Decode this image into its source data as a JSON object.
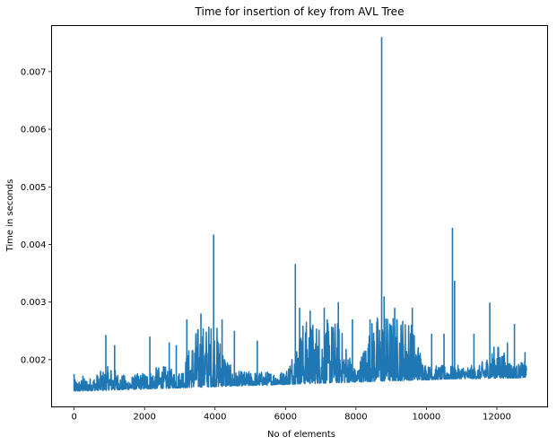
{
  "chart_data": {
    "type": "line",
    "title": "Time for insertion of key from AVL Tree",
    "xlabel": "No of elements",
    "ylabel": "Time in seconds",
    "xlim": [
      -640,
      13440
    ],
    "ylim": [
      0.00118,
      0.0078
    ],
    "xticks": [
      0,
      2000,
      4000,
      6000,
      8000,
      10000,
      12000
    ],
    "xtick_labels": [
      "0",
      "2000",
      "4000",
      "6000",
      "8000",
      "10000",
      "12000"
    ],
    "yticks": [
      0.002,
      0.003,
      0.004,
      0.005,
      0.006,
      0.007
    ],
    "ytick_labels": [
      "0.002",
      "0.003",
      "0.004",
      "0.005",
      "0.006",
      "0.007"
    ],
    "grid": false,
    "line_color": "#1f77b4",
    "series": [
      {
        "x": [
          0,
          500,
          1000,
          1500,
          2000,
          2500,
          3000,
          3500,
          4000,
          4500,
          5000,
          5500,
          6000,
          6500,
          7000,
          7500,
          8000,
          8500,
          9000,
          9500,
          10000,
          10500,
          11000,
          11500,
          12000,
          12500,
          12850
        ],
        "baseline": [
          0.00145,
          0.00146,
          0.00147,
          0.00148,
          0.00149,
          0.0015,
          0.00151,
          0.00152,
          0.00153,
          0.00154,
          0.00155,
          0.00156,
          0.00157,
          0.00158,
          0.00159,
          0.0016,
          0.00161,
          0.00162,
          0.00163,
          0.00164,
          0.00165,
          0.00166,
          0.00167,
          0.00167,
          0.00168,
          0.00168,
          0.00169
        ],
        "envelope": [
          0.00165,
          0.0017,
          0.0019,
          0.0017,
          0.0018,
          0.0019,
          0.0018,
          0.0026,
          0.0027,
          0.0018,
          0.0018,
          0.0018,
          0.0018,
          0.0027,
          0.0027,
          0.0027,
          0.0018,
          0.0028,
          0.0028,
          0.0028,
          0.0019,
          0.0019,
          0.0019,
          0.0019,
          0.0023,
          0.0019,
          0.002
        ]
      }
    ],
    "spikes": [
      {
        "x": 0,
        "y": 0.00175
      },
      {
        "x": 250,
        "y": 0.00172
      },
      {
        "x": 900,
        "y": 0.00243
      },
      {
        "x": 1150,
        "y": 0.00225
      },
      {
        "x": 2150,
        "y": 0.0024
      },
      {
        "x": 2700,
        "y": 0.0023
      },
      {
        "x": 2900,
        "y": 0.00225
      },
      {
        "x": 3200,
        "y": 0.0027
      },
      {
        "x": 3600,
        "y": 0.0028
      },
      {
        "x": 3960,
        "y": 0.00417
      },
      {
        "x": 4200,
        "y": 0.0027
      },
      {
        "x": 4550,
        "y": 0.0025
      },
      {
        "x": 5200,
        "y": 0.00233
      },
      {
        "x": 6280,
        "y": 0.00366
      },
      {
        "x": 6400,
        "y": 0.0029
      },
      {
        "x": 6700,
        "y": 0.00285
      },
      {
        "x": 7100,
        "y": 0.0029
      },
      {
        "x": 7500,
        "y": 0.003
      },
      {
        "x": 7900,
        "y": 0.0027
      },
      {
        "x": 8400,
        "y": 0.0027
      },
      {
        "x": 8730,
        "y": 0.0076
      },
      {
        "x": 8800,
        "y": 0.0031
      },
      {
        "x": 9100,
        "y": 0.0029
      },
      {
        "x": 9600,
        "y": 0.0029
      },
      {
        "x": 10150,
        "y": 0.00245
      },
      {
        "x": 10500,
        "y": 0.00245
      },
      {
        "x": 10740,
        "y": 0.00429
      },
      {
        "x": 10800,
        "y": 0.00337
      },
      {
        "x": 11350,
        "y": 0.00245
      },
      {
        "x": 11800,
        "y": 0.00299
      },
      {
        "x": 12300,
        "y": 0.0023
      },
      {
        "x": 12500,
        "y": 0.00262
      },
      {
        "x": 12800,
        "y": 0.00213
      }
    ]
  }
}
